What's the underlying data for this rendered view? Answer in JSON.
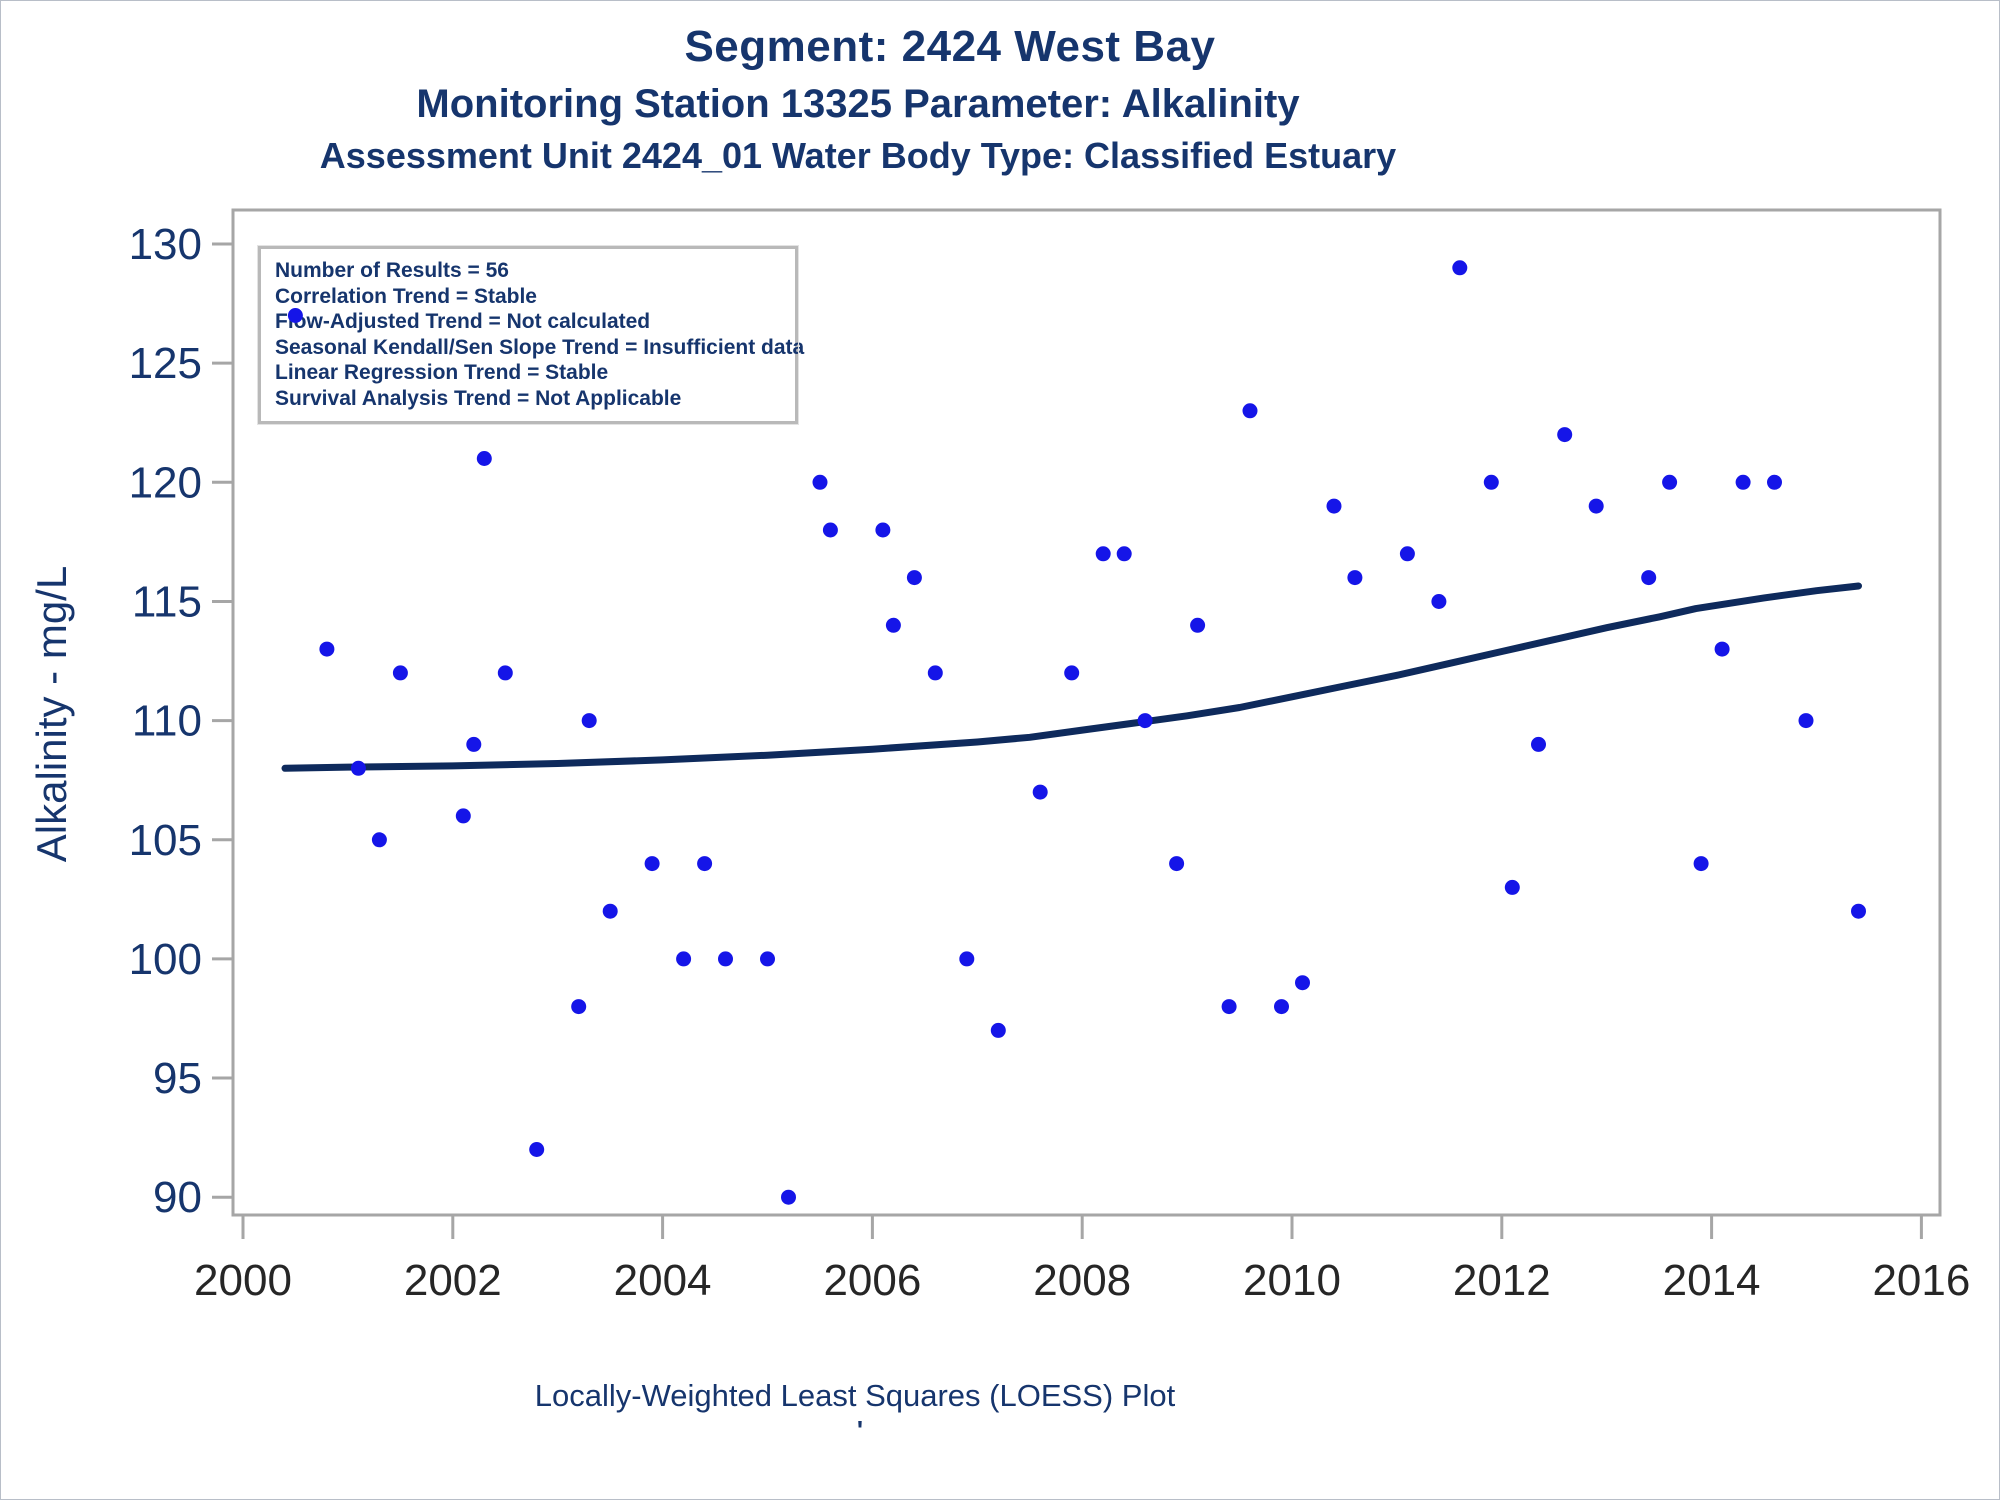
{
  "header": {
    "title1": "Segment: 2424  West Bay",
    "title2": "Monitoring Station 13325 Parameter: Alkalinity",
    "title3": "Assessment Unit 2424_01   Water Body Type: Classified Estuary"
  },
  "stats_box": {
    "lines": [
      "Number of Results = 56",
      "Correlation Trend = Stable",
      "Flow-Adjusted Trend = Not calculated",
      "Seasonal Kendall/Sen Slope Trend = Insufficient data",
      "Linear Regression Trend = Stable",
      "Survival Analysis Trend = Not Applicable"
    ]
  },
  "footer": {
    "caption": "Locally-Weighted Least Squares (LOESS) Plot",
    "stray_mark": "'"
  },
  "colors": {
    "title_navy": "#16356d",
    "point_blue": "#1515e8",
    "loess_navy": "#0e2a5c",
    "axis_gray": "#a6a6a6",
    "x_tick_label": "#262626"
  },
  "chart_data": {
    "type": "scatter",
    "title": "Segment: 2424  West Bay",
    "xlabel": "",
    "ylabel": "Alkalinity - mg/L",
    "xlim": [
      2000,
      2016
    ],
    "ylim": [
      90,
      130
    ],
    "x_ticks": [
      2000,
      2002,
      2004,
      2006,
      2008,
      2010,
      2012,
      2014,
      2016
    ],
    "y_ticks": [
      90,
      95,
      100,
      105,
      110,
      115,
      120,
      125,
      130
    ],
    "grid": false,
    "legend_position": "inset-top-left",
    "points_series_name": "Alkalinity results (mg/L)",
    "points": [
      [
        2000.5,
        127
      ],
      [
        2000.8,
        113
      ],
      [
        2001.1,
        108
      ],
      [
        2001.3,
        105
      ],
      [
        2001.5,
        112
      ],
      [
        2002.1,
        106
      ],
      [
        2002.2,
        109
      ],
      [
        2002.3,
        121
      ],
      [
        2002.5,
        112
      ],
      [
        2002.8,
        92
      ],
      [
        2003.2,
        98
      ],
      [
        2003.3,
        110
      ],
      [
        2003.5,
        102
      ],
      [
        2003.9,
        104
      ],
      [
        2004.2,
        100
      ],
      [
        2004.4,
        104
      ],
      [
        2004.6,
        100
      ],
      [
        2005.0,
        100
      ],
      [
        2005.2,
        90
      ],
      [
        2005.5,
        120
      ],
      [
        2005.6,
        118
      ],
      [
        2006.1,
        118
      ],
      [
        2006.2,
        114
      ],
      [
        2006.4,
        116
      ],
      [
        2006.6,
        112
      ],
      [
        2006.9,
        100
      ],
      [
        2007.2,
        97
      ],
      [
        2007.6,
        107
      ],
      [
        2007.9,
        112
      ],
      [
        2008.2,
        117
      ],
      [
        2008.4,
        117
      ],
      [
        2008.6,
        110
      ],
      [
        2008.9,
        104
      ],
      [
        2009.1,
        114
      ],
      [
        2009.4,
        98
      ],
      [
        2009.6,
        123
      ],
      [
        2009.9,
        98
      ],
      [
        2010.1,
        99
      ],
      [
        2010.4,
        119
      ],
      [
        2010.6,
        116
      ],
      [
        2011.1,
        117
      ],
      [
        2011.4,
        115
      ],
      [
        2011.6,
        129
      ],
      [
        2011.9,
        120
      ],
      [
        2012.1,
        103
      ],
      [
        2012.35,
        109
      ],
      [
        2012.6,
        122
      ],
      [
        2012.9,
        119
      ],
      [
        2013.4,
        116
      ],
      [
        2013.6,
        120
      ],
      [
        2013.9,
        104
      ],
      [
        2014.1,
        113
      ],
      [
        2014.3,
        120
      ],
      [
        2014.6,
        120
      ],
      [
        2014.9,
        110
      ],
      [
        2015.4,
        102
      ]
    ],
    "loess_line": [
      [
        2000.4,
        108.0
      ],
      [
        2001.0,
        108.05
      ],
      [
        2002.0,
        108.1
      ],
      [
        2003.0,
        108.2
      ],
      [
        2004.0,
        108.35
      ],
      [
        2005.0,
        108.55
      ],
      [
        2006.0,
        108.8
      ],
      [
        2007.0,
        109.1
      ],
      [
        2007.5,
        109.3
      ],
      [
        2008.0,
        109.6
      ],
      [
        2008.5,
        109.9
      ],
      [
        2009.0,
        110.2
      ],
      [
        2009.5,
        110.55
      ],
      [
        2010.0,
        111.0
      ],
      [
        2010.5,
        111.45
      ],
      [
        2011.0,
        111.9
      ],
      [
        2011.5,
        112.4
      ],
      [
        2012.0,
        112.9
      ],
      [
        2012.5,
        113.4
      ],
      [
        2013.0,
        113.9
      ],
      [
        2013.5,
        114.35
      ],
      [
        2013.85,
        114.7
      ],
      [
        2014.5,
        115.15
      ],
      [
        2015.0,
        115.45
      ],
      [
        2015.4,
        115.65
      ]
    ]
  }
}
